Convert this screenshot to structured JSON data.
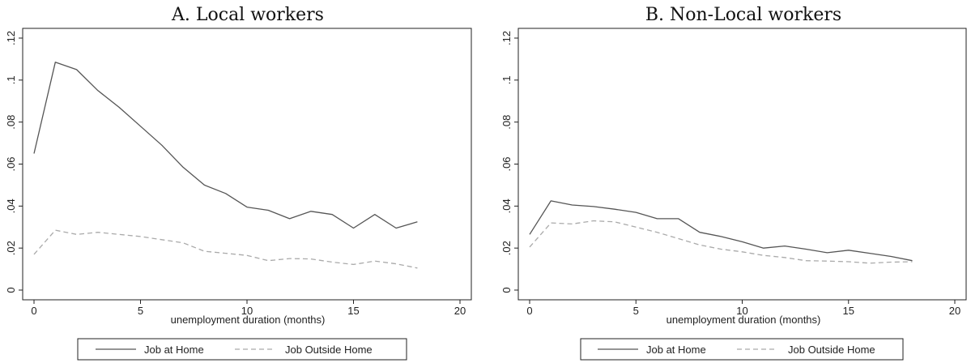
{
  "chart_data": [
    {
      "type": "line",
      "title": "A. Local workers",
      "xlabel": "unemployment duration (months)",
      "ylabel": "",
      "xlim": [
        0,
        20
      ],
      "ylim": [
        0,
        0.12
      ],
      "x_ticks": [
        0,
        5,
        10,
        15,
        20
      ],
      "x_tick_labels": [
        "0",
        "5",
        "10",
        "15",
        "20"
      ],
      "y_ticks": [
        0,
        0.02,
        0.04,
        0.06,
        0.08,
        0.1,
        0.12
      ],
      "y_tick_labels": [
        "0",
        ".02",
        ".04",
        ".06",
        ".08",
        ".1",
        ".12"
      ],
      "grid": false,
      "legend_position": "bottom",
      "x": [
        0,
        1,
        2,
        3,
        4,
        5,
        6,
        7,
        8,
        9,
        10,
        11,
        12,
        13,
        14,
        15,
        16,
        17,
        18
      ],
      "series": [
        {
          "name": "Job at Home",
          "style": "solid",
          "color": "#555555",
          "values": [
            0.065,
            0.1085,
            0.105,
            0.095,
            0.087,
            0.078,
            0.069,
            0.0585,
            0.05,
            0.046,
            0.0395,
            0.038,
            0.034,
            0.0375,
            0.036,
            0.0295,
            0.036,
            0.0295,
            0.0325
          ]
        },
        {
          "name": "Job Outside Home",
          "style": "dashed",
          "color": "#aaaaaa",
          "values": [
            0.017,
            0.0285,
            0.0265,
            0.0275,
            0.0265,
            0.0255,
            0.024,
            0.0225,
            0.0185,
            0.0175,
            0.0165,
            0.014,
            0.015,
            0.0148,
            0.0133,
            0.0122,
            0.0138,
            0.0125,
            0.0105
          ]
        }
      ]
    },
    {
      "type": "line",
      "title": "B. Non-Local workers",
      "xlabel": "unemployment duration (months)",
      "ylabel": "",
      "xlim": [
        0,
        20
      ],
      "ylim": [
        0,
        0.12
      ],
      "x_ticks": [
        0,
        5,
        10,
        15,
        20
      ],
      "x_tick_labels": [
        "0",
        "5",
        "10",
        "15",
        "20"
      ],
      "y_ticks": [
        0,
        0.02,
        0.04,
        0.06,
        0.08,
        0.1,
        0.12
      ],
      "y_tick_labels": [
        "0",
        ".02",
        ".04",
        ".06",
        ".08",
        ".1",
        ".12"
      ],
      "grid": false,
      "legend_position": "bottom",
      "x": [
        0,
        1,
        2,
        3,
        4,
        5,
        6,
        7,
        8,
        9,
        10,
        11,
        12,
        13,
        14,
        15,
        16,
        17,
        18
      ],
      "series": [
        {
          "name": "Job at Home",
          "style": "solid",
          "color": "#555555",
          "values": [
            0.0265,
            0.0425,
            0.0405,
            0.0398,
            0.0385,
            0.037,
            0.034,
            0.034,
            0.0275,
            0.0255,
            0.023,
            0.02,
            0.021,
            0.0195,
            0.0178,
            0.019,
            0.0175,
            0.016,
            0.014
          ]
        },
        {
          "name": "Job Outside Home",
          "style": "dashed",
          "color": "#aaaaaa",
          "values": [
            0.0205,
            0.032,
            0.0315,
            0.033,
            0.0325,
            0.03,
            0.0275,
            0.0245,
            0.0215,
            0.0195,
            0.0182,
            0.0165,
            0.0155,
            0.014,
            0.0138,
            0.0135,
            0.0128,
            0.0133,
            0.0135
          ]
        }
      ]
    }
  ]
}
